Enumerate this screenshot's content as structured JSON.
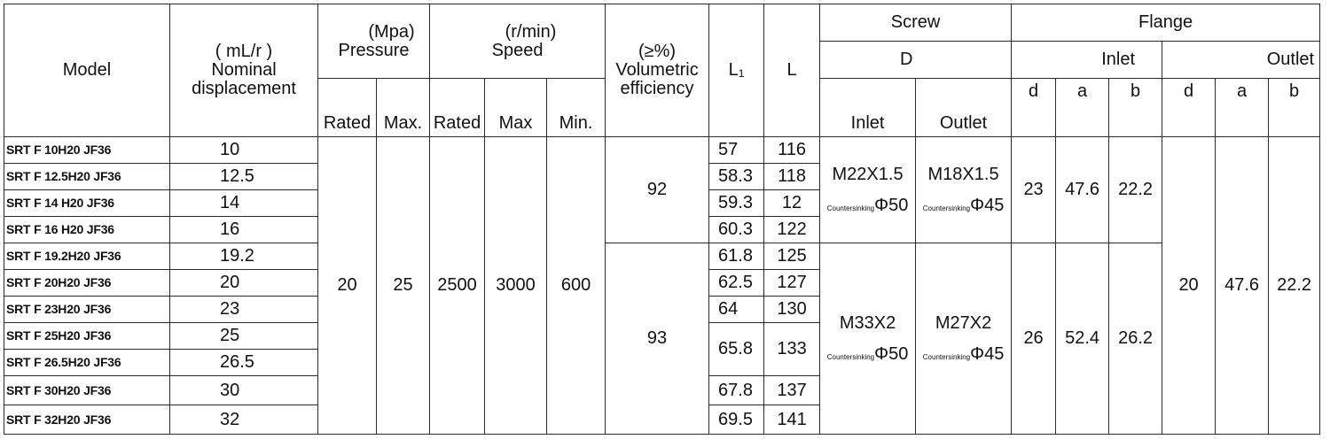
{
  "headers": {
    "model": "Model",
    "displacement_unit": "( mL/r )",
    "displacement": "Nominal displacement",
    "pressure_unit": "(Mpa)",
    "pressure": "Pressure",
    "speed_unit": "(r/min)",
    "speed": "Speed",
    "efficiency_unit": "(≥%)",
    "efficiency": "Volumetric efficiency",
    "l1": "L₁",
    "l": "L",
    "screw": "Screw",
    "screw_d": "D",
    "screw_inlet": "Inlet",
    "screw_outlet": "Outlet",
    "flange": "Flange",
    "flange_inlet": "Inlet",
    "flange_outlet": "Outlet",
    "rated": "Rated",
    "max_dot": "Max.",
    "rated2": "Rated",
    "max": "Max",
    "min": "Min.",
    "d1": "d",
    "a1": "a",
    "b1": "b",
    "d2": "d",
    "a2": "a",
    "b2": "b"
  },
  "rows": [
    {
      "model": "SRT F 10H20 JF36",
      "disp": "10",
      "l1": "57",
      "l": "116"
    },
    {
      "model": "SRT F 12.5H20 JF36",
      "disp": "12.5",
      "l1": "58.3",
      "l": "118"
    },
    {
      "model": "SRT F 14 H20 JF36",
      "disp": "14",
      "l1": "59.3",
      "l": "12"
    },
    {
      "model": "SRT F 16 H20 JF36",
      "disp": "16",
      "l1": "60.3",
      "l": "122"
    },
    {
      "model": "SRT F 19.2H20 JF36",
      "disp": "19.2",
      "l1": "61.8",
      "l": "125"
    },
    {
      "model": "SRT F 20H20 JF36",
      "disp": "20",
      "l1": "62.5",
      "l": "127"
    },
    {
      "model": "SRT F 23H20 JF36",
      "disp": "23",
      "l1": "64",
      "l": "130"
    },
    {
      "model": "SRT F 25H20 JF36",
      "disp": "25",
      "l1": "65.8",
      "l": "133"
    },
    {
      "model": "SRT F 26.5H20 JF36",
      "disp": "26.5"
    },
    {
      "model": "SRT F 30H20 JF36",
      "disp": "30",
      "l1": "67.8",
      "l": "137"
    },
    {
      "model": "SRT F 32H20 JF36",
      "disp": "32",
      "l1": "69.5",
      "l": "141"
    }
  ],
  "shared": {
    "pressure_rated": "20",
    "pressure_max": "25",
    "speed_rated": "2500",
    "speed_max": "3000",
    "speed_min": "600",
    "eff_group1": "92",
    "eff_group2": "93",
    "screw_group1_inlet": "M22X1.5",
    "screw_group1_outlet": "M18X1.5",
    "screw_group2_inlet": "M33X2",
    "screw_group2_outlet": "M27X2",
    "countersinking_label": "Countersinking",
    "countersink_inlet": "Φ50",
    "countersink_outlet": "Φ45",
    "flange_in_g1_d": "23",
    "flange_in_g1_a": "47.6",
    "flange_in_g1_b": "22.2",
    "flange_in_g2_d": "26",
    "flange_in_g2_a": "52.4",
    "flange_in_g2_b": "26.2",
    "flange_out_d": "20",
    "flange_out_a": "47.6",
    "flange_out_b": "22.2"
  }
}
